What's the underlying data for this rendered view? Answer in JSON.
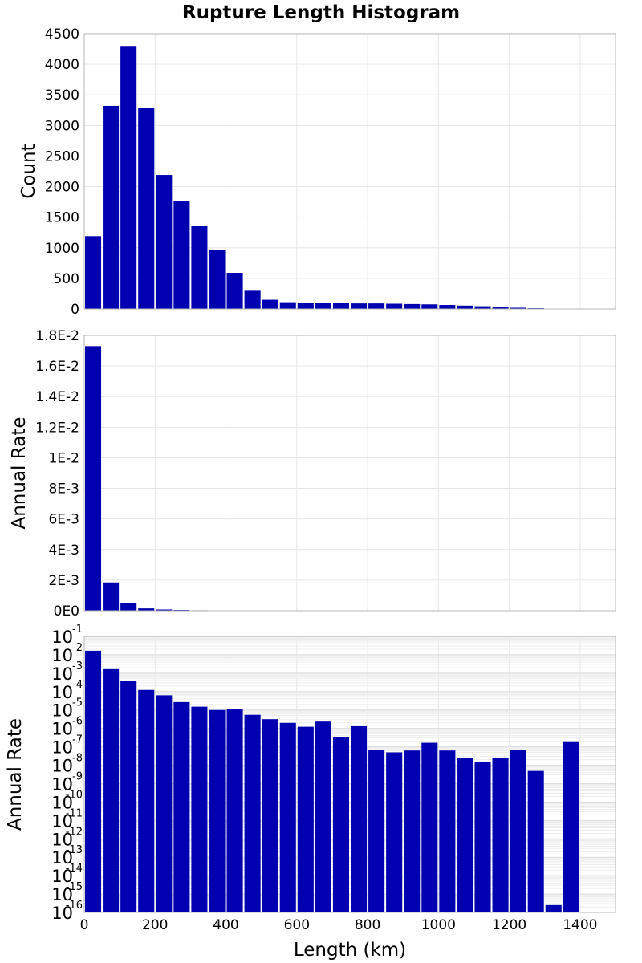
{
  "chart_data": {
    "type": "bar",
    "title": "Rupture Length Histogram",
    "xlabel": "Length (km)",
    "xlim": [
      0,
      1500
    ],
    "x_ticks": [
      "0",
      "200",
      "400",
      "600",
      "800",
      "1000",
      "1200",
      "1400"
    ],
    "x_tick_values": [
      0,
      200,
      400,
      600,
      800,
      1000,
      1200,
      1400
    ],
    "bin_width": 50,
    "bar_color": "#0000b0",
    "grid": true,
    "bin_centers": [
      25,
      75,
      125,
      175,
      225,
      275,
      325,
      375,
      425,
      475,
      525,
      575,
      625,
      675,
      725,
      775,
      825,
      875,
      925,
      975,
      1025,
      1075,
      1125,
      1175,
      1225,
      1275,
      1325,
      1375
    ],
    "panels": [
      {
        "ylabel": "Count",
        "scale": "linear",
        "ylim": [
          0,
          4500
        ],
        "y_ticks": [
          "0",
          "500",
          "1000",
          "1500",
          "2000",
          "2500",
          "3000",
          "3500",
          "4000",
          "4500"
        ],
        "y_tick_values": [
          0,
          500,
          1000,
          1500,
          2000,
          2500,
          3000,
          3500,
          4000,
          4500
        ],
        "values": [
          1190,
          3320,
          4300,
          3290,
          2190,
          1760,
          1360,
          970,
          590,
          310,
          150,
          110,
          105,
          100,
          95,
          90,
          90,
          85,
          80,
          75,
          65,
          55,
          45,
          30,
          20,
          12,
          5,
          3
        ]
      },
      {
        "ylabel": "Annual Rate",
        "scale": "linear",
        "ylim": [
          0,
          0.018
        ],
        "y_ticks": [
          "0E0",
          "2E-3",
          "4E-3",
          "6E-3",
          "8E-3",
          "1E-2",
          "1.2E-2",
          "1.4E-2",
          "1.6E-2",
          "1.8E-2"
        ],
        "y_tick_values": [
          0,
          0.002,
          0.004,
          0.006,
          0.008,
          0.01,
          0.012,
          0.014,
          0.016,
          0.018
        ],
        "values": [
          0.0173,
          0.00185,
          0.0005,
          0.00015,
          8e-05,
          5e-05,
          3e-05,
          2e-05,
          1.5e-05,
          1e-05,
          7e-06,
          5e-06,
          3e-06,
          2e-06,
          1e-06,
          1e-06,
          0,
          0,
          0,
          0,
          0,
          0,
          0,
          0,
          0,
          0,
          0,
          0
        ]
      },
      {
        "ylabel": "Annual Rate",
        "scale": "log",
        "ylim_exp": [
          -16,
          -1
        ],
        "y_tick_base": "10",
        "y_tick_exponents": [
          "-16",
          "-15",
          "-14",
          "-13",
          "-12",
          "-11",
          "-10",
          "-9",
          "-8",
          "-7",
          "-6",
          "-5",
          "-4",
          "-3",
          "-2",
          "-1"
        ],
        "y_tick_exp_values": [
          -16,
          -15,
          -14,
          -13,
          -12,
          -11,
          -10,
          -9,
          -8,
          -7,
          -6,
          -5,
          -4,
          -3,
          -2,
          -1
        ],
        "log10_values": [
          -1.78,
          -2.78,
          -3.4,
          -3.91,
          -4.2,
          -4.57,
          -4.82,
          -5.0,
          -4.97,
          -5.26,
          -5.5,
          -5.7,
          -5.91,
          -5.63,
          -6.46,
          -5.88,
          -7.18,
          -7.3,
          -7.2,
          -6.78,
          -7.2,
          -7.62,
          -7.8,
          -7.6,
          -7.16,
          -8.31,
          -15.6,
          -6.7
        ]
      }
    ]
  }
}
